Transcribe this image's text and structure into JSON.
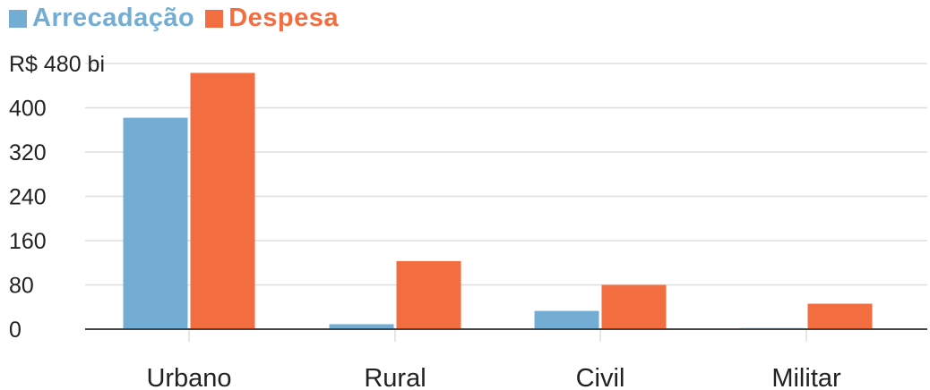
{
  "colors": {
    "arrecadacao": "#74add4",
    "despesa": "#f26e40",
    "grid": "#dddddd",
    "axis": "#444444"
  },
  "legend": [
    {
      "label": "Arrecadação",
      "color": "#74add4"
    },
    {
      "label": "Despesa",
      "color": "#f26e40"
    }
  ],
  "chart_data": {
    "type": "bar",
    "categories": [
      "Urbano",
      "Rural",
      "Civil",
      "Militar"
    ],
    "series": [
      {
        "name": "Arrecadação",
        "values": [
          382,
          9,
          33,
          2
        ]
      },
      {
        "name": "Despesa",
        "values": [
          463,
          123,
          80,
          46
        ]
      }
    ],
    "ylim": [
      0,
      480
    ],
    "yticks": [
      0,
      80,
      160,
      240,
      320,
      400,
      480
    ],
    "ytick_labels": [
      "0",
      "80",
      "160",
      "240",
      "320",
      "400",
      "R$ 480 bi"
    ],
    "grid": true,
    "legend_position": "top-left"
  }
}
